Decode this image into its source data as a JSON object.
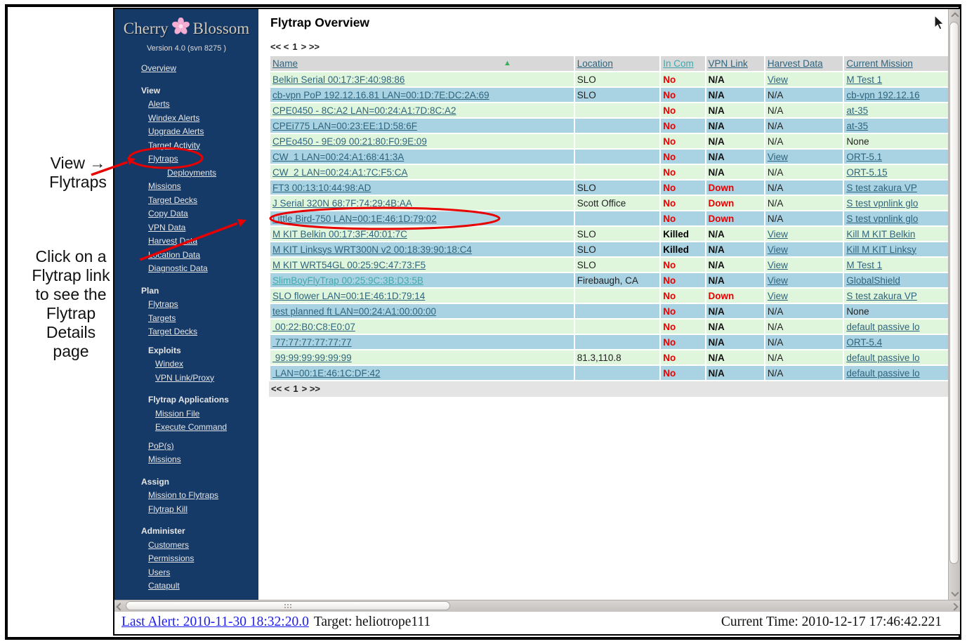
{
  "colors": {
    "sidebar_bg": "#153A68",
    "sidebar_text": "#E6E6E6",
    "logo_text": "#CFC8BA",
    "row_green": "#DFF6DC",
    "row_blue": "#A9D3E2",
    "header_bg": "#D8D8D8",
    "band_bg": "#E4E4E4",
    "table_link": "#2E647E",
    "teal_link": "#3FA8AC",
    "status_red": "#E80000",
    "sort_green": "#3CAD5E",
    "alert_blue": "#1C1CEE",
    "annotation_red": "#E80000"
  },
  "annotations": {
    "note1_line1": "View →",
    "note1_line2": "Flytraps",
    "note2_lines": [
      "Click on a",
      "Flytrap link",
      "to see the",
      "Flytrap",
      "Details",
      "page"
    ]
  },
  "sidebar": {
    "logo_left": "Cherry",
    "logo_right": "Blossom",
    "version": "Version 4.0 (svn 8275 )",
    "items": [
      {
        "label": "Overview",
        "type": "link",
        "indent": 0,
        "gap": 0
      },
      {
        "label": "View",
        "type": "header",
        "indent": 0,
        "gap": 1
      },
      {
        "label": "Alerts",
        "type": "link",
        "indent": 1,
        "gap": 0
      },
      {
        "label": "Windex Alerts",
        "type": "link",
        "indent": 1,
        "gap": 0
      },
      {
        "label": "Upgrade Alerts",
        "type": "link",
        "indent": 1,
        "gap": 0
      },
      {
        "label": "Target Activity",
        "type": "link",
        "indent": 1,
        "gap": 0
      },
      {
        "label": "Flytraps",
        "type": "link",
        "indent": 1,
        "gap": 0
      },
      {
        "label": "Deployments",
        "type": "link",
        "indent": 3,
        "gap": 0
      },
      {
        "label": "Missions",
        "type": "link",
        "indent": 1,
        "gap": 0
      },
      {
        "label": "Target Decks",
        "type": "link",
        "indent": 1,
        "gap": 0
      },
      {
        "label": "Copy Data",
        "type": "link",
        "indent": 1,
        "gap": 0
      },
      {
        "label": "VPN Data",
        "type": "link",
        "indent": 1,
        "gap": 0
      },
      {
        "label": "Harvest Data",
        "type": "link",
        "indent": 1,
        "gap": 0
      },
      {
        "label": "Location Data",
        "type": "link",
        "indent": 1,
        "gap": 0
      },
      {
        "label": "Diagnostic Data",
        "type": "link",
        "indent": 1,
        "gap": 0
      },
      {
        "label": "Plan",
        "type": "header",
        "indent": 0,
        "gap": 1
      },
      {
        "label": "Flytraps",
        "type": "link",
        "indent": 1,
        "gap": 0
      },
      {
        "label": "Targets",
        "type": "link",
        "indent": 1,
        "gap": 0
      },
      {
        "label": "Target Decks",
        "type": "link",
        "indent": 1,
        "gap": 0
      },
      {
        "label": "Exploits",
        "type": "header",
        "indent": 1,
        "gap": 2
      },
      {
        "label": "Windex",
        "type": "link",
        "indent": 2,
        "gap": 0
      },
      {
        "label": "VPN Link/Proxy",
        "type": "link",
        "indent": 2,
        "gap": 0
      },
      {
        "label": "Flytrap Applications",
        "type": "header",
        "indent": 1,
        "gap": 1
      },
      {
        "label": "Mission File",
        "type": "link",
        "indent": 2,
        "gap": 0
      },
      {
        "label": "Execute Command",
        "type": "link",
        "indent": 2,
        "gap": 0
      },
      {
        "label": "PoP(s)",
        "type": "link",
        "indent": 1,
        "gap": 2
      },
      {
        "label": "Missions",
        "type": "link",
        "indent": 1,
        "gap": 0
      },
      {
        "label": "Assign",
        "type": "header",
        "indent": 0,
        "gap": 1
      },
      {
        "label": "Mission to Flytraps",
        "type": "link",
        "indent": 1,
        "gap": 0
      },
      {
        "label": "Flytrap Kill",
        "type": "link",
        "indent": 1,
        "gap": 0
      },
      {
        "label": "Administer",
        "type": "header",
        "indent": 0,
        "gap": 1
      },
      {
        "label": "Customers",
        "type": "link",
        "indent": 1,
        "gap": 0
      },
      {
        "label": "Permissions",
        "type": "link",
        "indent": 1,
        "gap": 0
      },
      {
        "label": "Users",
        "type": "link",
        "indent": 1,
        "gap": 0
      },
      {
        "label": "Catapult",
        "type": "link",
        "indent": 1,
        "gap": 0
      }
    ]
  },
  "main": {
    "title": "Flytrap Overview",
    "pagination": {
      "prev": "<< <",
      "page": "1",
      "next": "> >>"
    },
    "table": {
      "columns": [
        {
          "label": "Name",
          "sorted": true
        },
        {
          "label": "Location"
        },
        {
          "label": "In Com",
          "accent": true
        },
        {
          "label": "VPN Link"
        },
        {
          "label": "Harvest Data"
        },
        {
          "label": "Current Mission"
        }
      ],
      "rows": [
        {
          "name": "Belkin Serial 00:17:3F:40:98:86",
          "location": "SLO",
          "in_com": "No",
          "vpn": "N/A",
          "harvest": "View",
          "mission": "M Test 1"
        },
        {
          "name": "cb-vpn PoP 192.12.16.81 LAN=00:1D:7E:DC:2A:69",
          "location": "SLO",
          "in_com": "No",
          "vpn": "N/A",
          "harvest": "N/A",
          "mission": "cb-vpn 192.12.16"
        },
        {
          "name": "CPE0450 - 8C:A2 LAN=00:24:A1:7D:8C:A2",
          "location": "",
          "in_com": "No",
          "vpn": "N/A",
          "harvest": "N/A",
          "mission": "at-35"
        },
        {
          "name": "CPEi775 LAN=00:23:EE:1D:58:6F",
          "location": "",
          "in_com": "No",
          "vpn": "N/A",
          "harvest": "N/A",
          "mission": "at-35"
        },
        {
          "name": "CPEo450 - 9E:09 00:21:80:F0:9E:09",
          "location": "",
          "in_com": "No",
          "vpn": "N/A",
          "harvest": "N/A",
          "mission": "None"
        },
        {
          "name": "CW  1 LAN=00:24:A1:68:41:3A",
          "location": "",
          "in_com": "No",
          "vpn": "N/A",
          "harvest": "View",
          "mission": "ORT-5.1"
        },
        {
          "name": "CW  2 LAN=00:24:A1:7C:F5:CA",
          "location": "",
          "in_com": "No",
          "vpn": "N/A",
          "harvest": "N/A",
          "mission": "ORT-5.15"
        },
        {
          "name": "FT3 00:13:10:44:98:AD",
          "location": "SLO",
          "in_com": "No",
          "vpn": "Down",
          "harvest": "N/A",
          "mission": "S test zakura VP"
        },
        {
          "name": "J Serial 320N 68:7F:74:29:4B:AA",
          "location": "Scott Office",
          "in_com": "No",
          "vpn": "Down",
          "harvest": "N/A",
          "mission": "S test vpnlink glo"
        },
        {
          "name": "Little Bird-750 LAN=00:1E:46:1D:79:02",
          "location": "",
          "in_com": "No",
          "vpn": "Down",
          "harvest": "N/A",
          "mission": "S test vpnlink glo"
        },
        {
          "name": "M KIT Belkin 00:17:3F:40:01:7C",
          "location": "SLO",
          "in_com": "Killed",
          "vpn": "N/A",
          "harvest": "View",
          "mission": "Kill M KIT Belkin"
        },
        {
          "name": "M KIT Linksys WRT300N v2 00:18:39:90:18:C4",
          "location": "SLO",
          "in_com": "Killed",
          "vpn": "N/A",
          "harvest": "View",
          "mission": "Kill M KIT Linksy"
        },
        {
          "name": "M KIT WRT54GL 00:25:9C:47:73:F5",
          "location": "SLO",
          "in_com": "No",
          "vpn": "N/A",
          "harvest": "View",
          "mission": "M Test 1"
        },
        {
          "name": "SlimBoyFlyTrap 00:25:9C:3B:D3:5B",
          "teal": true,
          "location": "Firebaugh, CA",
          "in_com": "No",
          "vpn": "N/A",
          "harvest": "View",
          "mission": "GlobalShield"
        },
        {
          "name": "SLO flower LAN=00:1E:46:1D:79:14",
          "location": "",
          "in_com": "No",
          "vpn": "Down",
          "harvest": "View",
          "mission": "S test zakura VP"
        },
        {
          "name": "test planned ft LAN=00:24:A1:00:00:00",
          "location": "",
          "in_com": "No",
          "vpn": "N/A",
          "harvest": "N/A",
          "mission": "None"
        },
        {
          "name": " 00:22:B0:C8:E0:07",
          "location": "",
          "in_com": "No",
          "vpn": "N/A",
          "harvest": "N/A",
          "mission": "default passive lo"
        },
        {
          "name": " 77:77:77:77:77:77",
          "location": "",
          "in_com": "No",
          "vpn": "N/A",
          "harvest": "N/A",
          "mission": "ORT-5.4"
        },
        {
          "name": " 99:99:99:99:99:99",
          "location": "81.3,110.8",
          "in_com": "No",
          "vpn": "N/A",
          "harvest": "N/A",
          "mission": "default passive lo"
        },
        {
          "name": " LAN=00:1E:46:1C:DF:42",
          "location": "",
          "in_com": "No",
          "vpn": "N/A",
          "harvest": "N/A",
          "mission": "default passive lo"
        }
      ]
    }
  },
  "statusbar": {
    "last_alert": "Last Alert: 2010-11-30 18:32:20.0",
    "target": "Target: heliotrope111",
    "current_time": "Current Time: 2010-12-17 17:46:42.221"
  }
}
